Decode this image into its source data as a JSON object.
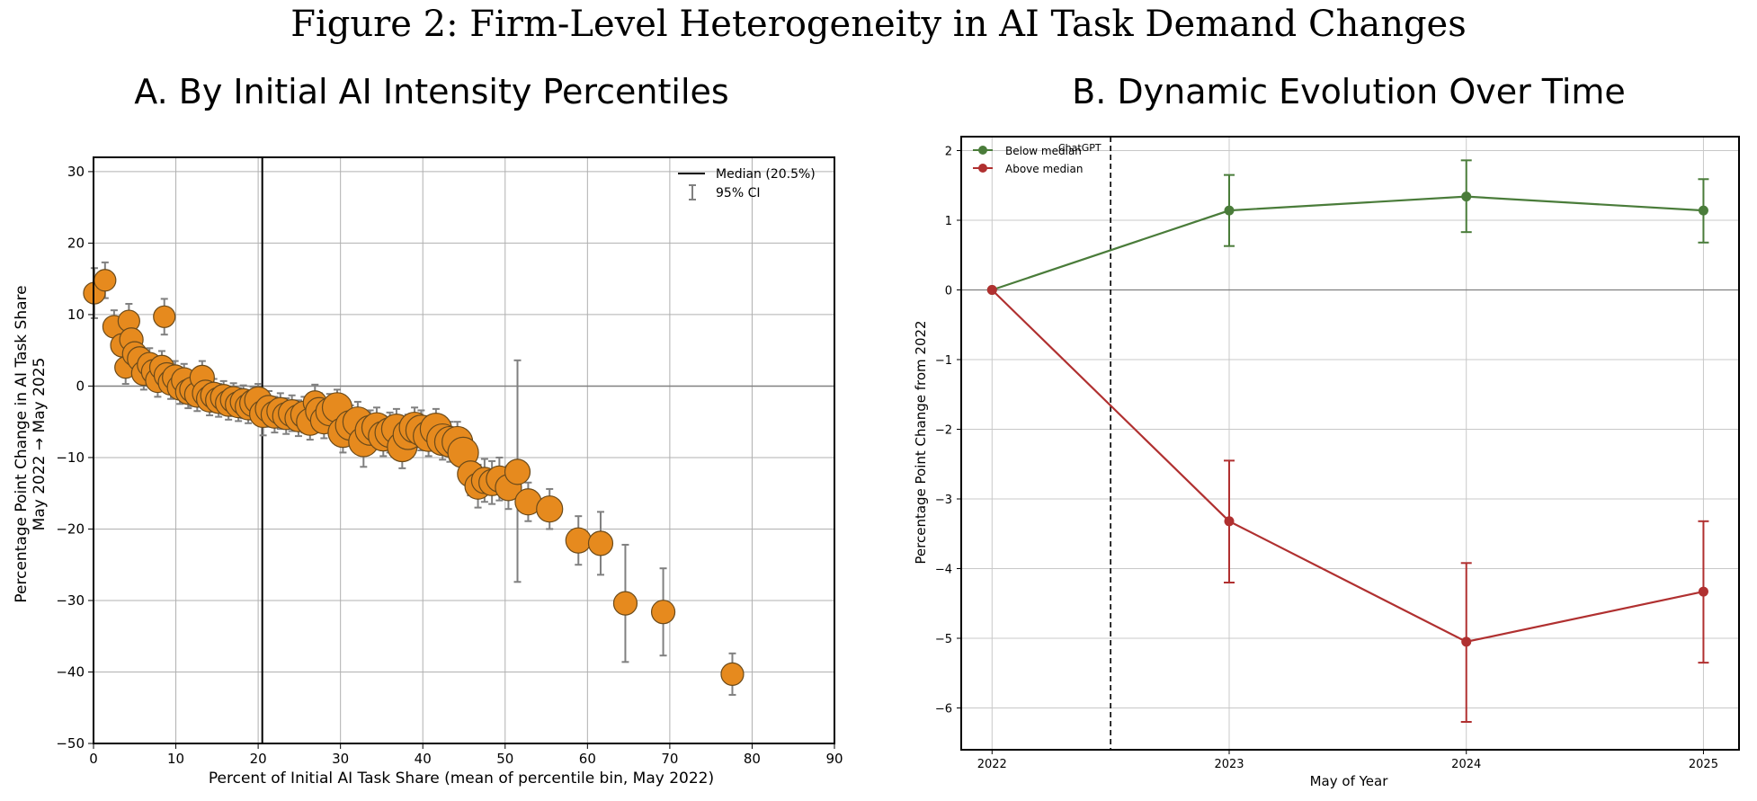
{
  "figure_title": "Figure 2: Firm-Level Heterogeneity in AI Task Demand Changes",
  "panel_a": {
    "title": "A. By Initial AI Intensity Percentiles",
    "xlabel": "Percent of Initial AI Task Share (mean of percentile bin, May 2022)",
    "ylabel_line1": "Percentage Point Change in AI Task Share",
    "ylabel_line2": "May 2022 → May 2025",
    "legend": {
      "median_label": "Median (20.5%)",
      "ci_label": "95% CI"
    }
  },
  "panel_b": {
    "title": "B. Dynamic Evolution Over Time",
    "xlabel": "May of Year",
    "ylabel": "Percentage Point Change from 2022",
    "annotation": "ChatGPT",
    "legend": {
      "below_label": "Below median",
      "above_label": "Above median"
    }
  },
  "colors": {
    "marker_fill": "#e68a1e",
    "marker_edge": "#6b4a1a",
    "errorbar": "#808080",
    "below": "#4a7c3a",
    "above": "#b03030"
  },
  "chart_data": [
    {
      "type": "scatter",
      "xlim": [
        0,
        90
      ],
      "ylim": [
        -50,
        32
      ],
      "xticks": [
        0,
        10,
        20,
        30,
        40,
        50,
        60,
        70,
        80,
        90
      ],
      "yticks": [
        -50,
        -40,
        -30,
        -20,
        -10,
        0,
        10,
        20,
        30
      ],
      "grid": true,
      "legend_position": "top-right",
      "median_x": 20.5,
      "points": [
        {
          "x": 0.1,
          "y": 13,
          "lo": 9.5,
          "hi": 16.5,
          "s": 0.3
        },
        {
          "x": 1.4,
          "y": 14.8,
          "lo": 12.3,
          "hi": 17.3,
          "s": 0.3
        },
        {
          "x": 2.5,
          "y": 8.3,
          "lo": 6,
          "hi": 10.6,
          "s": 0.35
        },
        {
          "x": 3.5,
          "y": 5.7,
          "lo": 3,
          "hi": 8.4,
          "s": 0.4
        },
        {
          "x": 3.9,
          "y": 2.6,
          "lo": 0.3,
          "hi": 4.9,
          "s": 0.3
        },
        {
          "x": 4.3,
          "y": 9.1,
          "lo": 6.7,
          "hi": 11.5,
          "s": 0.3
        },
        {
          "x": 4.6,
          "y": 6.5,
          "lo": 4,
          "hi": 9,
          "s": 0.4
        },
        {
          "x": 5.0,
          "y": 4.5,
          "lo": 2,
          "hi": 7,
          "s": 0.45
        },
        {
          "x": 5.6,
          "y": 3.8,
          "lo": 1.3,
          "hi": 6.3,
          "s": 0.45
        },
        {
          "x": 6.1,
          "y": 1.8,
          "lo": -0.5,
          "hi": 4.1,
          "s": 0.45
        },
        {
          "x": 6.8,
          "y": 3.0,
          "lo": 0.7,
          "hi": 5.3,
          "s": 0.45
        },
        {
          "x": 7.3,
          "y": 2.0,
          "lo": -0.3,
          "hi": 4.3,
          "s": 0.45
        },
        {
          "x": 7.8,
          "y": 0.8,
          "lo": -1.5,
          "hi": 3.1,
          "s": 0.45
        },
        {
          "x": 8.3,
          "y": 2.6,
          "lo": 0.3,
          "hi": 4.9,
          "s": 0.45
        },
        {
          "x": 8.6,
          "y": 9.7,
          "lo": 7.2,
          "hi": 12.2,
          "s": 0.3
        },
        {
          "x": 8.9,
          "y": 1.5,
          "lo": -0.8,
          "hi": 3.8,
          "s": 0.5
        },
        {
          "x": 9.4,
          "y": 0.5,
          "lo": -1.8,
          "hi": 2.8,
          "s": 0.5
        },
        {
          "x": 9.9,
          "y": 1.2,
          "lo": -1.1,
          "hi": 3.5,
          "s": 0.5
        },
        {
          "x": 10.5,
          "y": -0.2,
          "lo": -2.5,
          "hi": 2.1,
          "s": 0.5
        },
        {
          "x": 11.0,
          "y": 0.8,
          "lo": -1.5,
          "hi": 3.1,
          "s": 0.5
        },
        {
          "x": 11.5,
          "y": -0.8,
          "lo": -3.1,
          "hi": 1.5,
          "s": 0.5
        },
        {
          "x": 12.0,
          "y": -0.5,
          "lo": -2.8,
          "hi": 1.8,
          "s": 0.5
        },
        {
          "x": 12.6,
          "y": -1.2,
          "lo": -3.5,
          "hi": 1.1,
          "s": 0.5
        },
        {
          "x": 13.2,
          "y": 1.2,
          "lo": -1.1,
          "hi": 3.5,
          "s": 0.45
        },
        {
          "x": 13.6,
          "y": -1.0,
          "lo": -3.3,
          "hi": 1.3,
          "s": 0.55
        },
        {
          "x": 14.1,
          "y": -1.8,
          "lo": -4.1,
          "hi": 0.5,
          "s": 0.55
        },
        {
          "x": 14.6,
          "y": -1.3,
          "lo": -3.6,
          "hi": 1.0,
          "s": 0.55
        },
        {
          "x": 15.2,
          "y": -2.0,
          "lo": -4.3,
          "hi": 0.3,
          "s": 0.55
        },
        {
          "x": 15.8,
          "y": -1.6,
          "lo": -3.9,
          "hi": 0.7,
          "s": 0.55
        },
        {
          "x": 16.4,
          "y": -2.4,
          "lo": -4.7,
          "hi": -0.1,
          "s": 0.55
        },
        {
          "x": 17.0,
          "y": -1.9,
          "lo": -4.2,
          "hi": 0.4,
          "s": 0.55
        },
        {
          "x": 17.6,
          "y": -2.6,
          "lo": -4.9,
          "hi": -0.3,
          "s": 0.55
        },
        {
          "x": 18.2,
          "y": -2.2,
          "lo": -4.5,
          "hi": 0.1,
          "s": 0.55
        },
        {
          "x": 18.8,
          "y": -2.9,
          "lo": -5.2,
          "hi": -0.6,
          "s": 0.55
        },
        {
          "x": 19.4,
          "y": -2.4,
          "lo": -4.7,
          "hi": -0.1,
          "s": 0.6
        },
        {
          "x": 20.0,
          "y": -2.0,
          "lo": -4.3,
          "hi": 0.3,
          "s": 0.6
        },
        {
          "x": 20.6,
          "y": -3.9,
          "lo": -6.9,
          "hi": -0.9,
          "s": 0.6
        },
        {
          "x": 21.3,
          "y": -3.2,
          "lo": -5.7,
          "hi": -0.7,
          "s": 0.6
        },
        {
          "x": 22.0,
          "y": -4.0,
          "lo": -6.5,
          "hi": -1.5,
          "s": 0.6
        },
        {
          "x": 22.7,
          "y": -3.5,
          "lo": -6.0,
          "hi": -1.0,
          "s": 0.6
        },
        {
          "x": 23.4,
          "y": -4.2,
          "lo": -6.7,
          "hi": -1.7,
          "s": 0.6
        },
        {
          "x": 24.1,
          "y": -3.8,
          "lo": -6.3,
          "hi": -1.3,
          "s": 0.6
        },
        {
          "x": 24.9,
          "y": -4.5,
          "lo": -7.0,
          "hi": -2.0,
          "s": 0.6
        },
        {
          "x": 25.6,
          "y": -4.0,
          "lo": -6.5,
          "hi": -1.5,
          "s": 0.6
        },
        {
          "x": 26.3,
          "y": -5.0,
          "lo": -7.5,
          "hi": -2.5,
          "s": 0.6
        },
        {
          "x": 26.9,
          "y": -2.3,
          "lo": -4.8,
          "hi": 0.2,
          "s": 0.4
        },
        {
          "x": 27.4,
          "y": -3.5,
          "lo": -6.0,
          "hi": -1.0,
          "s": 0.6
        },
        {
          "x": 28.0,
          "y": -4.8,
          "lo": -7.3,
          "hi": -2.3,
          "s": 0.6
        },
        {
          "x": 28.7,
          "y": -3.6,
          "lo": -6.1,
          "hi": -1.1,
          "s": 0.65
        },
        {
          "x": 29.6,
          "y": -3.0,
          "lo": -5.5,
          "hi": -0.5,
          "s": 0.75
        },
        {
          "x": 30.3,
          "y": -6.5,
          "lo": -9.3,
          "hi": -3.7,
          "s": 0.75
        },
        {
          "x": 31.2,
          "y": -5.5,
          "lo": -8.3,
          "hi": -2.7,
          "s": 0.75
        },
        {
          "x": 32.1,
          "y": -5.0,
          "lo": -7.8,
          "hi": -2.2,
          "s": 0.75
        },
        {
          "x": 32.8,
          "y": -7.8,
          "lo": -11.3,
          "hi": -4.3,
          "s": 0.75
        },
        {
          "x": 33.6,
          "y": -6.2,
          "lo": -9.0,
          "hi": -3.4,
          "s": 0.75
        },
        {
          "x": 34.4,
          "y": -5.8,
          "lo": -8.6,
          "hi": -3.0,
          "s": 0.75
        },
        {
          "x": 35.2,
          "y": -7.0,
          "lo": -9.8,
          "hi": -4.2,
          "s": 0.75
        },
        {
          "x": 36.0,
          "y": -6.5,
          "lo": -9.3,
          "hi": -3.7,
          "s": 0.75
        },
        {
          "x": 36.8,
          "y": -6.0,
          "lo": -8.8,
          "hi": -3.2,
          "s": 0.75
        },
        {
          "x": 37.5,
          "y": -8.5,
          "lo": -11.5,
          "hi": -5.5,
          "s": 0.75
        },
        {
          "x": 38.2,
          "y": -6.8,
          "lo": -9.6,
          "hi": -4.0,
          "s": 0.75
        },
        {
          "x": 39.0,
          "y": -5.8,
          "lo": -8.6,
          "hi": -3.0,
          "s": 0.8
        },
        {
          "x": 39.8,
          "y": -6.2,
          "lo": -9.0,
          "hi": -3.4,
          "s": 0.8
        },
        {
          "x": 40.7,
          "y": -7.0,
          "lo": -9.8,
          "hi": -4.2,
          "s": 0.8
        },
        {
          "x": 41.6,
          "y": -6.0,
          "lo": -8.8,
          "hi": -3.2,
          "s": 0.85
        },
        {
          "x": 42.4,
          "y": -7.5,
          "lo": -10.3,
          "hi": -4.7,
          "s": 0.85
        },
        {
          "x": 43.3,
          "y": -7.8,
          "lo": -10.6,
          "hi": -5.0,
          "s": 0.8
        },
        {
          "x": 44.2,
          "y": -7.8,
          "lo": -10.6,
          "hi": -5.0,
          "s": 0.8
        },
        {
          "x": 44.9,
          "y": -9.3,
          "lo": -12.3,
          "hi": -6.3,
          "s": 0.8
        },
        {
          "x": 45.8,
          "y": -12.3,
          "lo": -15.3,
          "hi": -9.3,
          "s": 0.55
        },
        {
          "x": 46.7,
          "y": -14.0,
          "lo": -17.0,
          "hi": -11.0,
          "s": 0.55
        },
        {
          "x": 47.5,
          "y": -13.2,
          "lo": -16.2,
          "hi": -10.2,
          "s": 0.55
        },
        {
          "x": 48.4,
          "y": -13.5,
          "lo": -16.5,
          "hi": -10.5,
          "s": 0.55
        },
        {
          "x": 49.3,
          "y": -13.0,
          "lo": -16.0,
          "hi": -10.0,
          "s": 0.55
        },
        {
          "x": 50.4,
          "y": -14.2,
          "lo": -17.2,
          "hi": -11.2,
          "s": 0.55
        },
        {
          "x": 51.5,
          "y": -12.0,
          "lo": -27.4,
          "hi": 3.6,
          "s": 0.5
        },
        {
          "x": 52.8,
          "y": -16.2,
          "lo": -18.9,
          "hi": -13.5,
          "s": 0.55
        },
        {
          "x": 55.4,
          "y": -17.2,
          "lo": -20.0,
          "hi": -14.4,
          "s": 0.55
        },
        {
          "x": 58.9,
          "y": -21.6,
          "lo": -25.0,
          "hi": -18.2,
          "s": 0.5
        },
        {
          "x": 61.6,
          "y": -22.0,
          "lo": -26.4,
          "hi": -17.6,
          "s": 0.45
        },
        {
          "x": 64.6,
          "y": -30.4,
          "lo": -38.6,
          "hi": -22.2,
          "s": 0.4
        },
        {
          "x": 69.2,
          "y": -31.6,
          "lo": -37.7,
          "hi": -25.5,
          "s": 0.4
        },
        {
          "x": 77.6,
          "y": -40.3,
          "lo": -43.2,
          "hi": -37.4,
          "s": 0.35
        }
      ]
    },
    {
      "type": "line",
      "x": [
        2022,
        2023,
        2024,
        2025
      ],
      "xlim": [
        2021.87,
        2025.15
      ],
      "ylim": [
        -6.6,
        2.2
      ],
      "xticks": [
        2022,
        2023,
        2024,
        2025
      ],
      "yticks": [
        -6,
        -5,
        -4,
        -3,
        -2,
        -1,
        0,
        1,
        2
      ],
      "grid": true,
      "legend_position": "top-left",
      "vline_x": 2022.5,
      "series": [
        {
          "name": "Below median",
          "key": "below",
          "values": [
            0,
            1.14,
            1.34,
            1.14
          ],
          "lo": [
            0,
            0.63,
            0.83,
            0.68
          ],
          "hi": [
            0,
            1.65,
            1.86,
            1.59
          ]
        },
        {
          "name": "Above median",
          "key": "above",
          "values": [
            0,
            -3.32,
            -5.05,
            -4.33
          ],
          "lo": [
            0,
            -4.2,
            -6.2,
            -5.35
          ],
          "hi": [
            0,
            -2.45,
            -3.92,
            -3.32
          ]
        }
      ]
    }
  ]
}
